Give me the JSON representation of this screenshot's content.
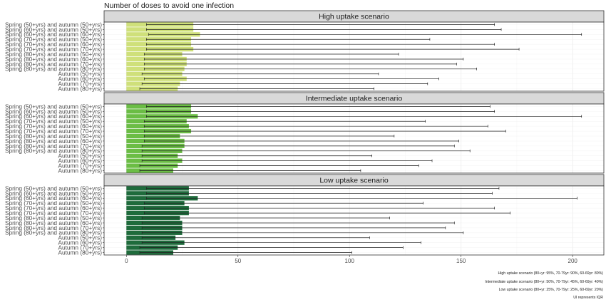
{
  "chart_data": {
    "type": "bar",
    "orientation": "horizontal",
    "title": "Number of doses to avoid one infection",
    "categories": [
      "Spring (50+yrs) and autumn (50+yrs)",
      "Spring (60+yrs) and autumn (50+yrs)",
      "Spring (60+yrs) and autumn (60+yrs)",
      "Spring (70+yrs) and autumn (50+yrs)",
      "Spring (70+yrs) and autumn (60+yrs)",
      "Spring (70+yrs) and autumn (70+yrs)",
      "Spring (80+yrs) and autumn (50+yrs)",
      "Spring (80+yrs) and autumn (60+yrs)",
      "Spring (80+yrs) and autumn (70+yrs)",
      "Spring (80+yrs) and autumn (80+yrs)",
      "Autumn (50+yrs)",
      "Autumn (60+yrs)",
      "Autumn (70+yrs)",
      "Autumn (80+yrs)"
    ],
    "xlim": [
      -10,
      214
    ],
    "x_ticks": [
      0,
      50,
      100,
      150,
      200
    ],
    "x_tick_labels": [
      "0",
      "50",
      "100",
      "150",
      "200"
    ],
    "grid": true,
    "panels": [
      {
        "strip": "High uptake scenario",
        "color": "#cfe07a",
        "values": [
          30,
          30,
          33,
          29,
          29,
          30,
          25,
          27,
          27,
          26,
          25,
          27,
          24,
          23
        ],
        "ui_low": [
          9,
          9,
          10,
          9,
          9,
          9,
          8,
          8,
          8,
          8,
          7,
          8,
          7,
          6
        ],
        "ui_high": [
          165,
          168,
          204,
          136,
          165,
          176,
          122,
          151,
          148,
          157,
          113,
          140,
          135,
          111
        ]
      },
      {
        "strip": "Intermediate uptake scenario",
        "color": "#6bbd45",
        "values": [
          29,
          29,
          32,
          27,
          28,
          29,
          24,
          26,
          26,
          25,
          23,
          25,
          23,
          21
        ],
        "ui_low": [
          9,
          9,
          9,
          8,
          8,
          8,
          8,
          8,
          7,
          7,
          7,
          7,
          6,
          6
        ],
        "ui_high": [
          163,
          165,
          204,
          134,
          162,
          170,
          120,
          149,
          147,
          154,
          110,
          137,
          131,
          105
        ]
      },
      {
        "strip": "Low uptake scenario",
        "color": "#1f6b3c",
        "values": [
          28,
          28,
          32,
          26,
          28,
          28,
          24,
          25,
          25,
          25,
          22,
          26,
          23,
          21
        ],
        "ui_low": [
          9,
          9,
          9,
          8,
          8,
          8,
          7,
          7,
          7,
          7,
          7,
          7,
          6,
          6
        ],
        "ui_high": [
          167,
          164,
          202,
          133,
          165,
          172,
          118,
          147,
          143,
          151,
          109,
          132,
          124,
          101
        ]
      }
    ],
    "notes": [
      "High uptake scenario (80+yr: 95%, 70-79yr: 90%, 60-69yr: 80%)",
      "Intermediate uptake scenario (80+yr: 50%, 70-79yr: 45%, 60-69yr: 40%)",
      "Low uptake scenario (80+yr: 25%, 70-79yr: 25%, 60-69yr: 20%)",
      "UI represents IQR"
    ]
  }
}
